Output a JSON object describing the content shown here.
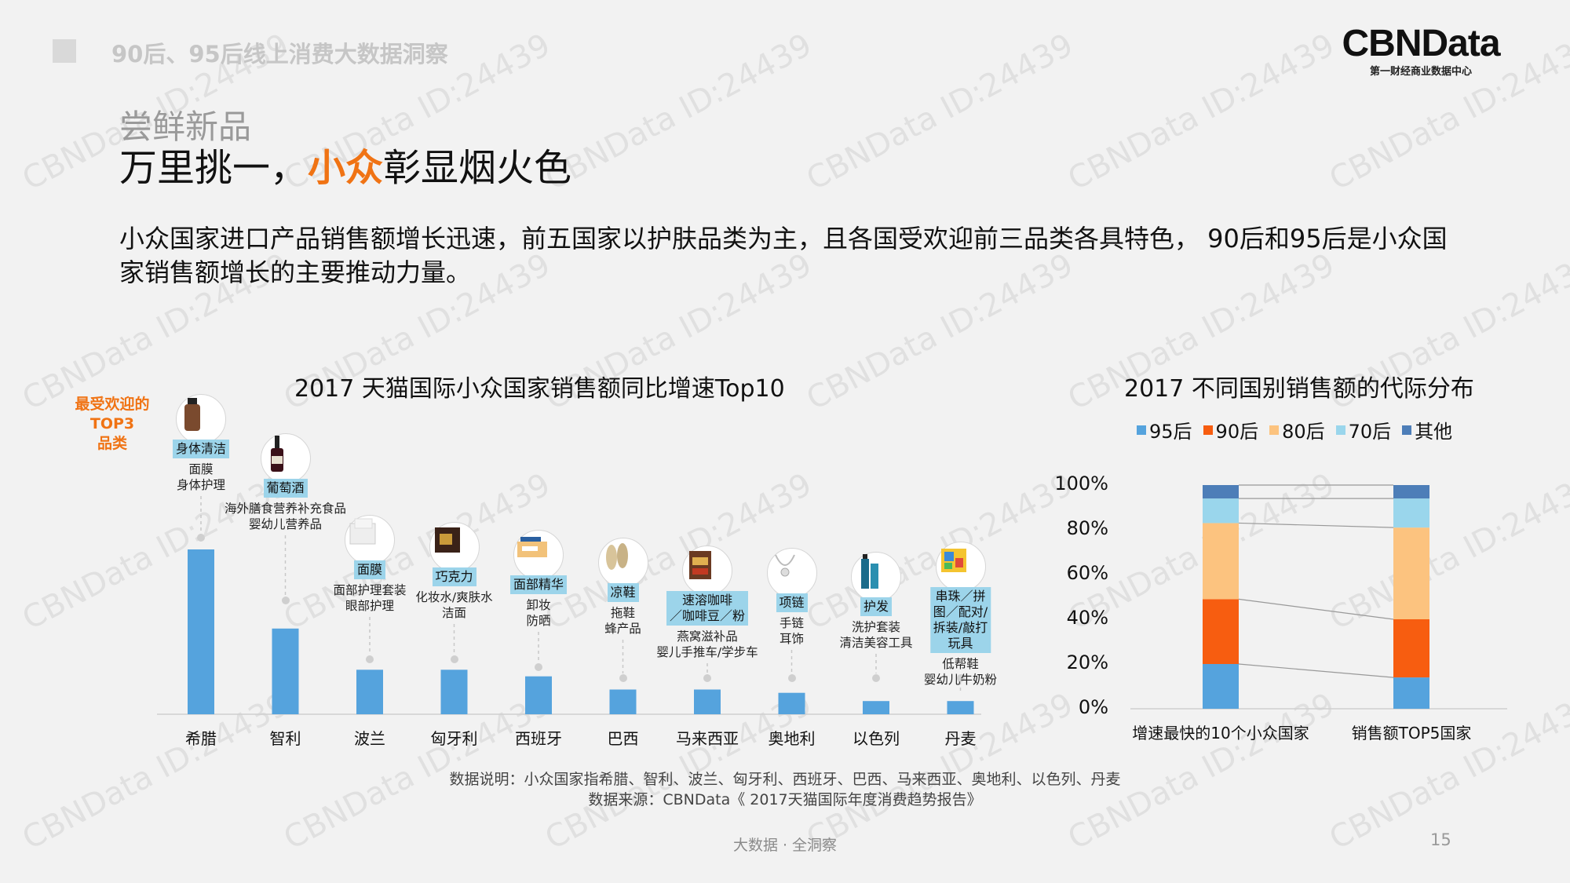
{
  "header": {
    "title": "90后、95后线上消费大数据洞察"
  },
  "logo": {
    "main": "CBNData",
    "sub": "第一财经商业数据中心"
  },
  "section_label": "尝鲜新品",
  "headline": {
    "part1": "万里挑一，",
    "highlight": "小众",
    "part2": "彰显烟火色"
  },
  "summary": "小众国家进口产品销售额增长迅速，前五国家以护肤品类为主，且各国受欢迎前三品类各具特色， 90后和95后是小众国家销售额增长的主要推动力量。",
  "legend_label": [
    "最受欢迎的",
    "TOP3",
    "品类"
  ],
  "chart_data": [
    {
      "type": "bar",
      "title": "2017 天猫国际小众国家销售额同比增速Top10",
      "categories": [
        "希腊",
        "智利",
        "波兰",
        "匈牙利",
        "西班牙",
        "巴西",
        "马来西亚",
        "奥地利",
        "以色列",
        "丹麦"
      ],
      "values": [
        100,
        52,
        27,
        27,
        23,
        15,
        15,
        13,
        8,
        8
      ],
      "color": "#55a3dd",
      "top_categories": [
        {
          "tag": [
            "身体清洁"
          ],
          "items": [
            "面膜",
            "身体护理"
          ],
          "icon": "body-wash-bottle-icon"
        },
        {
          "tag": [
            "葡萄酒"
          ],
          "items": [
            "海外膳食营养补充食品",
            "婴幼儿营养品"
          ],
          "icon": "wine-bottle-icon"
        },
        {
          "tag": [
            "面膜"
          ],
          "items": [
            "面部护理套装",
            "眼部护理"
          ],
          "icon": "face-mask-pack-icon"
        },
        {
          "tag": [
            "巧克力"
          ],
          "items": [
            "化妆水/爽肤水",
            "洁面"
          ],
          "icon": "chocolate-box-icon"
        },
        {
          "tag": [
            "面部精华"
          ],
          "items": [
            "卸妆",
            "防晒"
          ],
          "icon": "serum-box-icon"
        },
        {
          "tag": [
            "凉鞋"
          ],
          "items": [
            "拖鞋",
            "蜂产品"
          ],
          "icon": "sandals-icon"
        },
        {
          "tag": [
            "速溶咖啡",
            "／咖啡豆／粉"
          ],
          "items": [
            "燕窝滋补品",
            "婴儿手推车/学步车"
          ],
          "icon": "coffee-pack-icon"
        },
        {
          "tag": [
            "项链"
          ],
          "items": [
            "手链",
            "耳饰"
          ],
          "icon": "necklace-icon"
        },
        {
          "tag": [
            "护发"
          ],
          "items": [
            "洗护套装",
            "清洁美容工具"
          ],
          "icon": "hair-care-bottle-icon"
        },
        {
          "tag": [
            "串珠／拼",
            "图／配对/",
            "拆装/敲打",
            "玩具"
          ],
          "items": [
            "低帮鞋",
            "婴幼儿牛奶粉"
          ],
          "icon": "toy-box-icon"
        }
      ]
    },
    {
      "type": "bar",
      "stacked": true,
      "title": "2017 不同国别销售额的代际分布",
      "categories": [
        "增速最快的10个小众国家",
        "销售额TOP5国家"
      ],
      "series": [
        {
          "name": "95后",
          "color": "#55a3dd",
          "values": [
            20,
            14
          ]
        },
        {
          "name": "90后",
          "color": "#f75d10",
          "values": [
            29,
            26
          ]
        },
        {
          "name": "80后",
          "color": "#fcc37f",
          "values": [
            34,
            41
          ]
        },
        {
          "name": "70后",
          "color": "#9ad6ec",
          "values": [
            11,
            13
          ]
        },
        {
          "name": "其他",
          "color": "#4d7eb8",
          "values": [
            6,
            6
          ]
        }
      ],
      "yticks": [
        "0%",
        "20%",
        "40%",
        "60%",
        "80%",
        "100%"
      ],
      "ylim": [
        0,
        100
      ],
      "legend_position": "top"
    }
  ],
  "notes": {
    "line1": "数据说明：小众国家指希腊、智利、波兰、匈牙利、西班牙、巴西、马来西亚、奥地利、以色列、丹麦",
    "line2": "数据来源：CBNData《 2017天猫国际年度消费趋势报告》"
  },
  "footer": {
    "text": "大数据 · 全洞察",
    "page": "15"
  },
  "watermark": "CBNData ID:24439"
}
